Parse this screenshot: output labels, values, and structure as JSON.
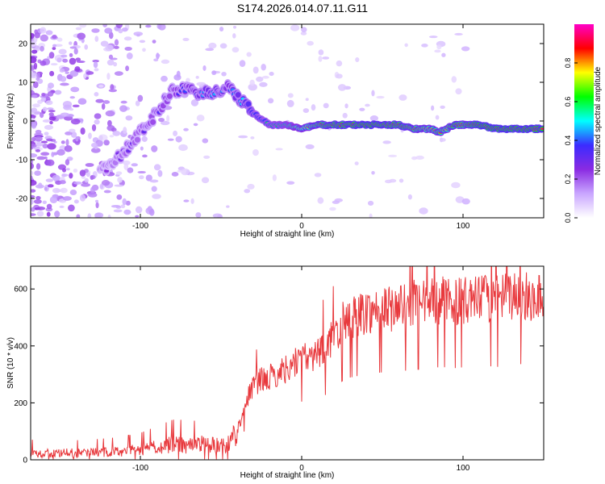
{
  "title": "S174.2026.014.07.11.G11",
  "colors": {
    "snr_line": "#e8393d",
    "frame": "#000000",
    "colormap": [
      "#ffffff",
      "#c9a6ff",
      "#8a2be2",
      "#3b2bff",
      "#00ffff",
      "#00ff00",
      "#ffff00",
      "#ff0000",
      "#ff00c8"
    ]
  },
  "chart_data": [
    {
      "type": "heatmap",
      "xlabel": "Height of straight line (km)",
      "ylabel": "Frequency (Hz)",
      "xlim": [
        -168,
        150
      ],
      "ylim": [
        -25,
        25
      ],
      "xticks": [
        -100,
        0,
        100
      ],
      "xtick_labels": [
        "-100",
        "0",
        "100"
      ],
      "yticks": [
        -20,
        -10,
        0,
        10,
        20
      ],
      "ytick_labels": [
        "-20",
        "-10",
        "0",
        "10",
        "20"
      ],
      "colorbar": {
        "label": "Normalized spectral amplitude",
        "range": [
          0,
          1
        ],
        "ticks": [
          0.0,
          0.2,
          0.4,
          0.6,
          0.8
        ],
        "tick_labels": [
          "0.0",
          "0.2",
          "0.4",
          "0.6",
          "0.8"
        ]
      },
      "ridge": {
        "heights": [
          -120,
          -110,
          -100,
          -90,
          -80,
          -70,
          -60,
          -50,
          -45,
          -40,
          -35,
          -30,
          -20,
          -10,
          0,
          10,
          20,
          40,
          60,
          70,
          80,
          85,
          90,
          95,
          100,
          110,
          120,
          130,
          150
        ],
        "frequency": [
          -12,
          -8,
          -3,
          2,
          8,
          8,
          7,
          8,
          9,
          6,
          4,
          2,
          -1,
          -1,
          -2,
          -1,
          -1,
          -1,
          -1,
          -2,
          -2,
          -3,
          -2,
          -1,
          -1,
          -1,
          -2,
          -2,
          -2
        ],
        "amplitude": [
          0.25,
          0.3,
          0.3,
          0.35,
          0.35,
          0.4,
          0.45,
          0.45,
          0.4,
          0.45,
          0.5,
          0.55,
          0.6,
          0.65,
          0.75,
          0.85,
          0.9,
          0.95,
          0.9,
          0.85,
          0.8,
          0.85,
          0.8,
          0.9,
          0.85,
          0.95,
          0.95,
          0.95,
          0.95
        ]
      }
    },
    {
      "type": "line",
      "xlabel": "Height of straight line (km)",
      "ylabel": "SNR (10 * v/v)",
      "xlim": [
        -168,
        150
      ],
      "ylim": [
        0,
        680
      ],
      "xticks": [
        -100,
        0,
        100
      ],
      "xtick_labels": [
        "-100",
        "0",
        "100"
      ],
      "yticks": [
        0,
        200,
        400,
        600
      ],
      "ytick_labels": [
        "0",
        "200",
        "400",
        "600"
      ],
      "series": [
        {
          "name": "SNR",
          "x": [
            -168,
            -160,
            -150,
            -140,
            -130,
            -120,
            -110,
            -100,
            -95,
            -90,
            -85,
            -80,
            -75,
            -70,
            -65,
            -60,
            -55,
            -50,
            -45,
            -40,
            -35,
            -30,
            -25,
            -20,
            -15,
            -10,
            -5,
            0,
            5,
            10,
            15,
            20,
            25,
            30,
            35,
            40,
            45,
            50,
            55,
            60,
            65,
            70,
            75,
            80,
            85,
            90,
            95,
            100,
            105,
            110,
            115,
            120,
            125,
            130,
            135,
            140,
            145,
            150
          ],
          "values": [
            25,
            22,
            23,
            24,
            25,
            27,
            30,
            35,
            40,
            45,
            50,
            55,
            55,
            50,
            55,
            60,
            50,
            50,
            60,
            100,
            200,
            260,
            280,
            290,
            300,
            320,
            340,
            360,
            350,
            380,
            400,
            430,
            480,
            500,
            510,
            520,
            525,
            530,
            530,
            540,
            540,
            550,
            545,
            555,
            560,
            560,
            555,
            560,
            555,
            565,
            570,
            560,
            570,
            575,
            580,
            570,
            575,
            580
          ]
        }
      ]
    }
  ]
}
